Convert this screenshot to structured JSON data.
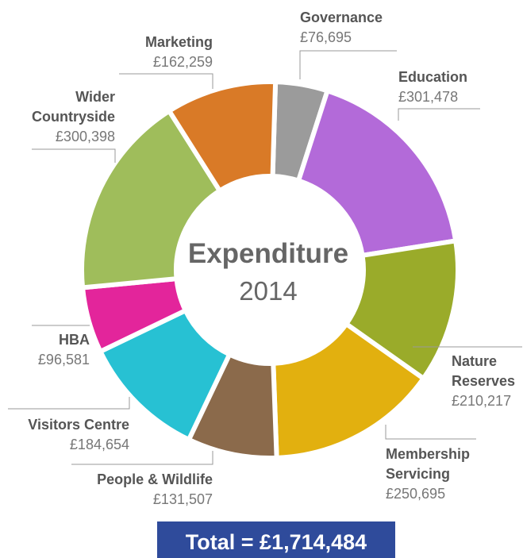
{
  "chart_data": {
    "type": "pie",
    "title": "Expenditure",
    "subtitle": "2014",
    "categories": [
      "Governance",
      "Education",
      "Nature Reserves",
      "Membership Servicing",
      "People & Wildlife",
      "Visitors Centre",
      "HBA",
      "Wider Countryside",
      "Marketing"
    ],
    "values": [
      76695,
      301478,
      210217,
      250695,
      131507,
      184654,
      96581,
      300398,
      162259
    ],
    "value_labels": [
      "£76,695",
      "£301,478",
      "£210,217",
      "£250,695",
      "£131,507",
      "£184,654",
      "£96,581",
      "£300,398",
      "£162,259"
    ],
    "colors": [
      "#9b9b9b",
      "#b36ad9",
      "#9aab2a",
      "#e2b00f",
      "#8b6a4b",
      "#27c1d3",
      "#e3259b",
      "#9fbd5b",
      "#d97a27"
    ],
    "annotations": [
      "Total = £1,714,484"
    ]
  }
}
